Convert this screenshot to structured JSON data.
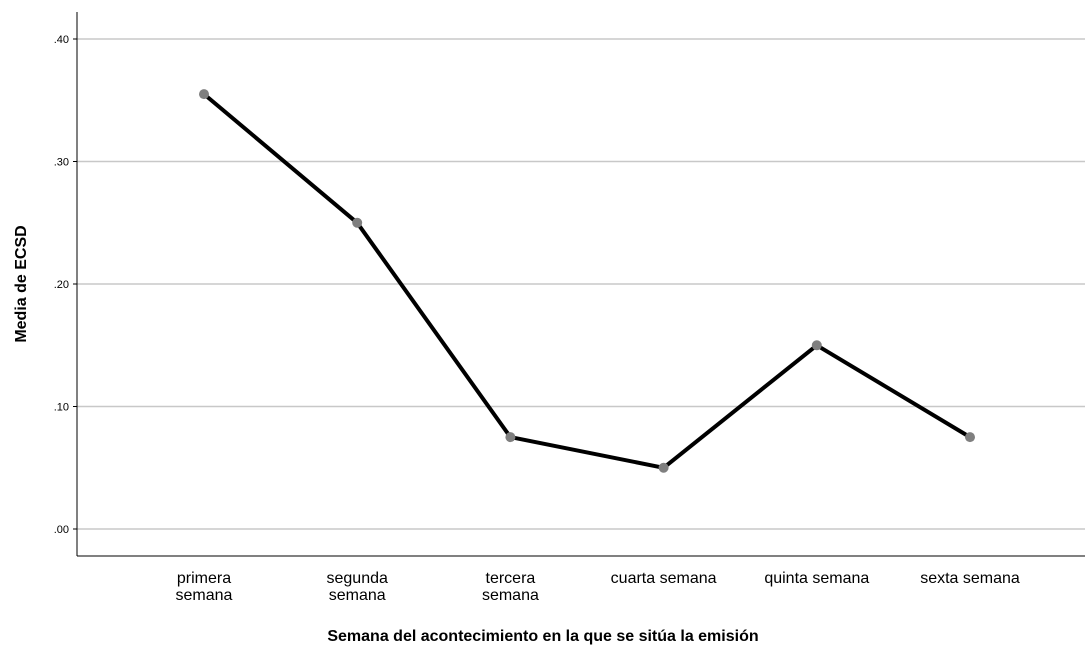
{
  "chart_data": {
    "type": "line",
    "categories": [
      [
        "primera",
        "semana"
      ],
      [
        "segunda",
        "semana"
      ],
      [
        "tercera",
        "semana"
      ],
      [
        "cuarta semana"
      ],
      [
        "quinta semana"
      ],
      [
        "sexta semana"
      ]
    ],
    "values": [
      0.355,
      0.25,
      0.075,
      0.05,
      0.15,
      0.075
    ],
    "xlabel": "Semana del acontecimiento en la que se sitúa la emisión",
    "ylabel": "Media de ECSD",
    "ylim": [
      0,
      0.42
    ],
    "yticks": [
      0,
      0.1,
      0.2,
      0.3,
      0.4
    ],
    "ytick_labels": [
      ".00",
      ".10",
      ".20",
      ".30",
      ".40"
    ],
    "grid": true,
    "line_color": "#000000",
    "marker_color": "#7f7f7f",
    "grid_color": "#c8c8c8"
  }
}
